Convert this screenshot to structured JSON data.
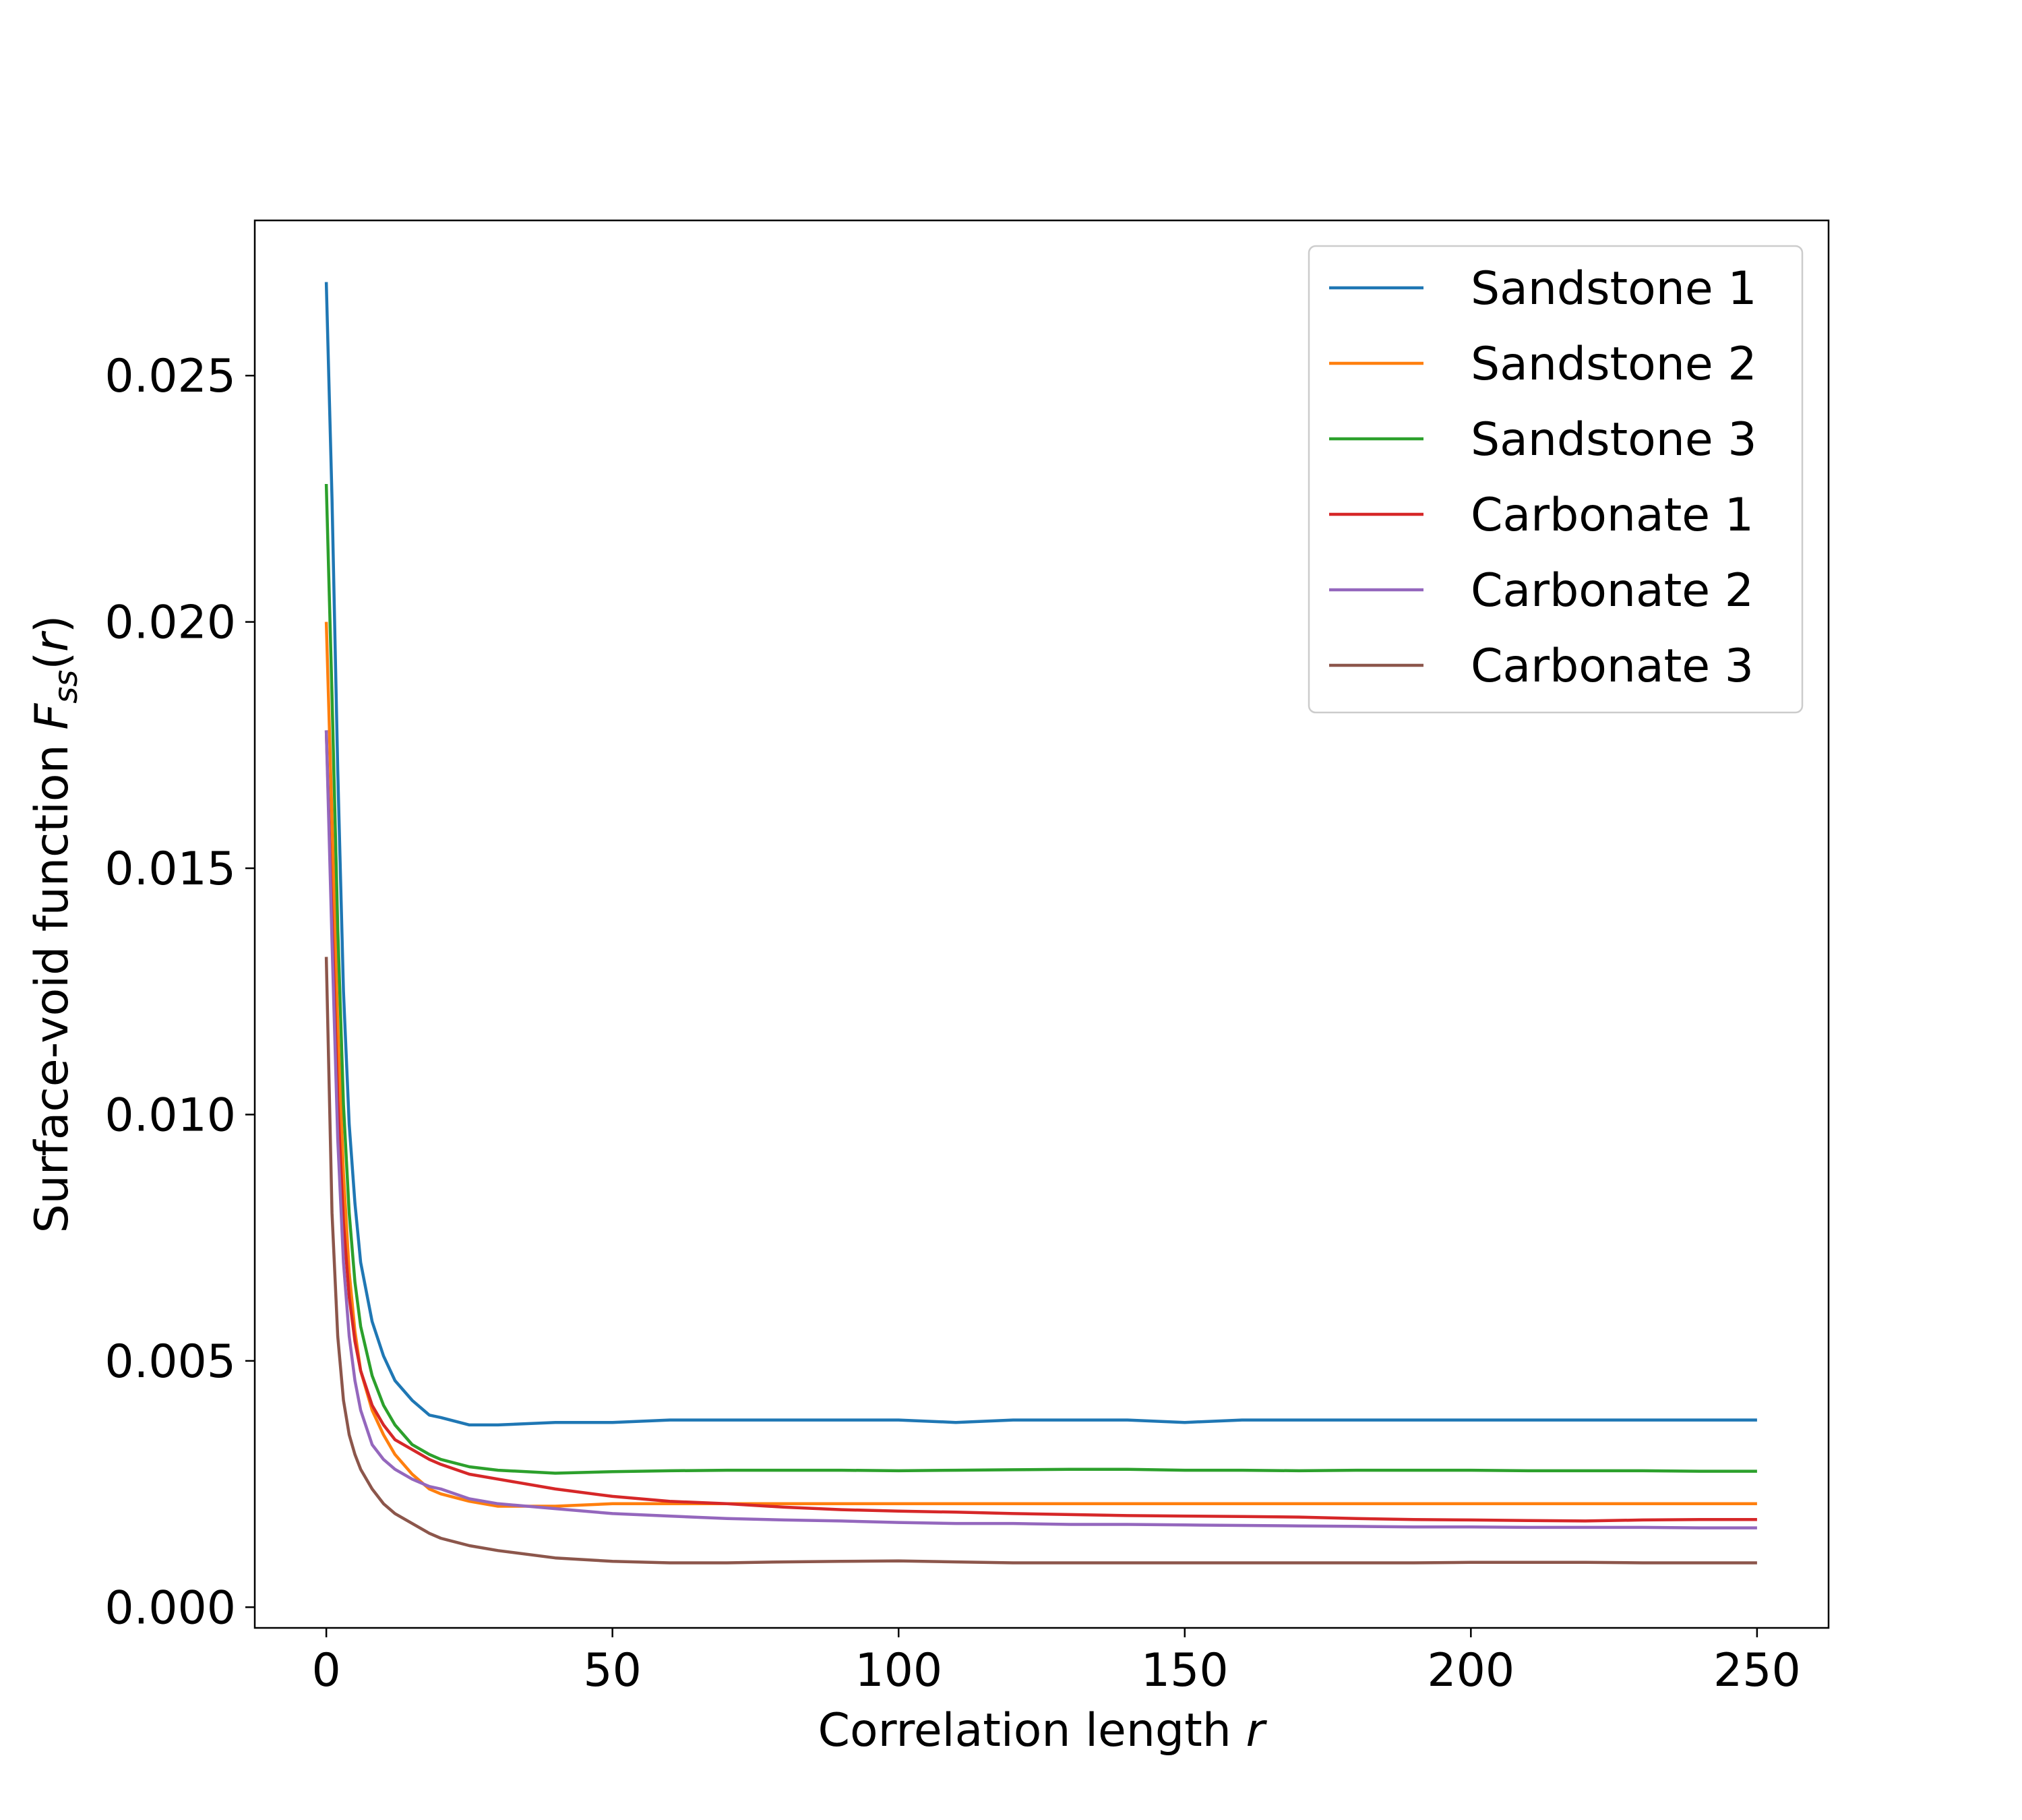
{
  "chart_data": {
    "type": "line",
    "xlabel": "Correlation length",
    "xlabel_var": "r",
    "ylabel": "Surface-void function",
    "ylabel_sym": "F",
    "ylabel_sub": "ss",
    "ylabel_arg": "r",
    "xlim": [
      -12.5,
      262.5
    ],
    "ylim": [
      -0.00042,
      0.02815
    ],
    "xticks": [
      0,
      50,
      100,
      150,
      200,
      250
    ],
    "yticks": [
      0.0,
      0.005,
      0.01,
      0.015,
      0.02,
      0.025
    ],
    "ytick_labels": [
      "0.000",
      "0.005",
      "0.010",
      "0.015",
      "0.020",
      "0.025"
    ],
    "legend_position": "top-right",
    "grid": false,
    "series": [
      {
        "name": "Sandstone 1",
        "color": "#1f77b4",
        "x": [
          0,
          1,
          2,
          3,
          4,
          5,
          6,
          8,
          10,
          12,
          15,
          18,
          20,
          25,
          30,
          40,
          50,
          60,
          70,
          80,
          90,
          100,
          110,
          120,
          130,
          140,
          150,
          160,
          170,
          180,
          190,
          200,
          210,
          220,
          230,
          240,
          250
        ],
        "y": [
          0.0269,
          0.0225,
          0.017,
          0.0125,
          0.0098,
          0.0082,
          0.007,
          0.0058,
          0.0051,
          0.0046,
          0.0042,
          0.0039,
          0.00385,
          0.0037,
          0.0037,
          0.00375,
          0.00375,
          0.0038,
          0.0038,
          0.0038,
          0.0038,
          0.0038,
          0.00375,
          0.0038,
          0.0038,
          0.0038,
          0.00375,
          0.0038,
          0.0038,
          0.0038,
          0.0038,
          0.0038,
          0.0038,
          0.0038,
          0.0038,
          0.0038,
          0.0038
        ]
      },
      {
        "name": "Sandstone 2",
        "color": "#ff7f0e",
        "x": [
          0,
          1,
          2,
          3,
          4,
          5,
          6,
          8,
          10,
          12,
          15,
          18,
          20,
          25,
          30,
          40,
          50,
          60,
          70,
          80,
          90,
          100,
          110,
          120,
          130,
          140,
          150,
          160,
          170,
          180,
          190,
          200,
          210,
          220,
          230,
          240,
          250
        ],
        "y": [
          0.02,
          0.016,
          0.0118,
          0.0088,
          0.0068,
          0.0056,
          0.0048,
          0.004,
          0.0035,
          0.0031,
          0.0027,
          0.0024,
          0.0023,
          0.00215,
          0.00205,
          0.00205,
          0.0021,
          0.0021,
          0.0021,
          0.0021,
          0.0021,
          0.0021,
          0.0021,
          0.0021,
          0.0021,
          0.0021,
          0.0021,
          0.0021,
          0.0021,
          0.0021,
          0.0021,
          0.0021,
          0.0021,
          0.0021,
          0.0021,
          0.0021,
          0.0021
        ]
      },
      {
        "name": "Sandstone 3",
        "color": "#2ca02c",
        "x": [
          0,
          1,
          2,
          3,
          4,
          5,
          6,
          8,
          10,
          12,
          15,
          18,
          20,
          25,
          30,
          40,
          50,
          60,
          70,
          80,
          90,
          100,
          110,
          120,
          130,
          140,
          150,
          160,
          170,
          180,
          190,
          200,
          210,
          220,
          230,
          240,
          250
        ],
        "y": [
          0.0228,
          0.0185,
          0.0138,
          0.0102,
          0.008,
          0.0066,
          0.0057,
          0.0047,
          0.0041,
          0.0037,
          0.0033,
          0.0031,
          0.003,
          0.00285,
          0.00278,
          0.00272,
          0.00275,
          0.00277,
          0.00278,
          0.00278,
          0.00278,
          0.00277,
          0.00278,
          0.00279,
          0.0028,
          0.0028,
          0.00278,
          0.00278,
          0.00277,
          0.00278,
          0.00278,
          0.00278,
          0.00277,
          0.00277,
          0.00277,
          0.00276,
          0.00276
        ]
      },
      {
        "name": "Carbonate 1",
        "color": "#d62728",
        "x": [
          0,
          1,
          2,
          3,
          4,
          5,
          6,
          8,
          10,
          12,
          15,
          18,
          20,
          25,
          30,
          40,
          50,
          60,
          70,
          80,
          90,
          100,
          110,
          120,
          130,
          140,
          150,
          160,
          170,
          180,
          190,
          200,
          210,
          220,
          230,
          240,
          250
        ],
        "y": [
          0.0178,
          0.014,
          0.0103,
          0.0078,
          0.0063,
          0.0054,
          0.0048,
          0.0041,
          0.0037,
          0.0034,
          0.0032,
          0.003,
          0.0029,
          0.0027,
          0.0026,
          0.0024,
          0.00225,
          0.00215,
          0.0021,
          0.00203,
          0.00198,
          0.00195,
          0.00193,
          0.0019,
          0.00188,
          0.00186,
          0.00185,
          0.00184,
          0.00183,
          0.0018,
          0.00178,
          0.00177,
          0.00176,
          0.00175,
          0.00177,
          0.00178,
          0.00178
        ]
      },
      {
        "name": "Carbonate 2",
        "color": "#9467bd",
        "x": [
          0,
          1,
          2,
          3,
          4,
          5,
          6,
          8,
          10,
          12,
          15,
          18,
          20,
          25,
          30,
          40,
          50,
          60,
          70,
          80,
          90,
          100,
          110,
          120,
          130,
          140,
          150,
          160,
          170,
          180,
          190,
          200,
          210,
          220,
          230,
          240,
          250
        ],
        "y": [
          0.0178,
          0.0135,
          0.0095,
          0.007,
          0.0055,
          0.0046,
          0.004,
          0.0033,
          0.003,
          0.0028,
          0.0026,
          0.00245,
          0.0024,
          0.0022,
          0.0021,
          0.002,
          0.0019,
          0.00185,
          0.0018,
          0.00177,
          0.00175,
          0.00172,
          0.0017,
          0.0017,
          0.00168,
          0.00168,
          0.00167,
          0.00166,
          0.00165,
          0.00164,
          0.00163,
          0.00163,
          0.00162,
          0.00162,
          0.00162,
          0.00161,
          0.00161
        ]
      },
      {
        "name": "Carbonate 3",
        "color": "#8c564b",
        "x": [
          0,
          1,
          2,
          3,
          4,
          5,
          6,
          8,
          10,
          12,
          15,
          18,
          20,
          25,
          30,
          40,
          50,
          60,
          70,
          80,
          90,
          100,
          110,
          120,
          130,
          140,
          150,
          160,
          170,
          180,
          190,
          200,
          210,
          220,
          230,
          240,
          250
        ],
        "y": [
          0.0132,
          0.008,
          0.0055,
          0.0042,
          0.0035,
          0.0031,
          0.0028,
          0.0024,
          0.0021,
          0.0019,
          0.0017,
          0.0015,
          0.0014,
          0.00125,
          0.00115,
          0.001,
          0.00093,
          0.0009,
          0.0009,
          0.00092,
          0.00093,
          0.00094,
          0.00092,
          0.0009,
          0.0009,
          0.0009,
          0.0009,
          0.0009,
          0.0009,
          0.0009,
          0.0009,
          0.00091,
          0.00091,
          0.00091,
          0.0009,
          0.0009,
          0.0009
        ]
      }
    ]
  }
}
